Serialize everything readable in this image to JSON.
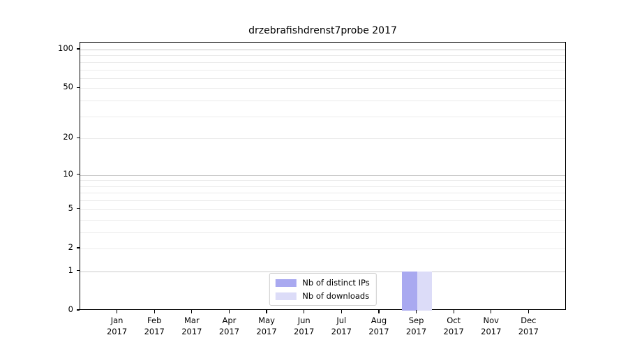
{
  "chart_data": {
    "type": "bar",
    "title": "drzebrafishdrenst7probe 2017",
    "categories": [
      {
        "month": "Jan",
        "year": "2017"
      },
      {
        "month": "Feb",
        "year": "2017"
      },
      {
        "month": "Mar",
        "year": "2017"
      },
      {
        "month": "Apr",
        "year": "2017"
      },
      {
        "month": "May",
        "year": "2017"
      },
      {
        "month": "Jun",
        "year": "2017"
      },
      {
        "month": "Jul",
        "year": "2017"
      },
      {
        "month": "Aug",
        "year": "2017"
      },
      {
        "month": "Sep",
        "year": "2017"
      },
      {
        "month": "Oct",
        "year": "2017"
      },
      {
        "month": "Nov",
        "year": "2017"
      },
      {
        "month": "Dec",
        "year": "2017"
      }
    ],
    "series": [
      {
        "name": "Nb of distinct IPs",
        "color": "#a9a9f0",
        "values": [
          0,
          0,
          0,
          0,
          0,
          0,
          0,
          0,
          1,
          0,
          0,
          0
        ]
      },
      {
        "name": "Nb of downloads",
        "color": "#dcdcf8",
        "values": [
          0,
          0,
          0,
          0,
          0,
          0,
          0,
          0,
          1,
          0,
          0,
          0
        ]
      }
    ],
    "y_scale": "log10(1+x)",
    "y_ticks": [
      0,
      1,
      2,
      5,
      10,
      20,
      50,
      100
    ],
    "y_major_gridlines": [
      1,
      10,
      100
    ],
    "y_minor_gridlines": [
      2,
      3,
      4,
      5,
      6,
      7,
      8,
      9,
      20,
      30,
      40,
      50,
      60,
      70,
      80,
      90
    ],
    "ylim": [
      0,
      113
    ],
    "grid": true,
    "legend_position": "lower center",
    "colors": {
      "grid_major": "#c9c9c9",
      "grid_minor": "#ebebeb",
      "spine": "#000000",
      "background": "#ffffff"
    }
  }
}
